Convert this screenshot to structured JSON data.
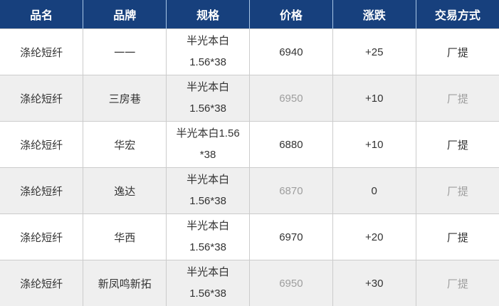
{
  "table": {
    "headers": {
      "name": "品名",
      "brand": "品牌",
      "spec": "规格",
      "price": "价格",
      "change": "涨跌",
      "trade": "交易方式"
    },
    "rows": [
      {
        "name": "涤纶短纤",
        "brand": "一一",
        "spec": "半光本白\n1.56*38",
        "price": "6940",
        "change": "+25",
        "trade": "厂提"
      },
      {
        "name": "涤纶短纤",
        "brand": "三房巷",
        "spec": "半光本白\n1.56*38",
        "price": "6950",
        "change": "+10",
        "trade": "厂提"
      },
      {
        "name": "涤纶短纤",
        "brand": "华宏",
        "spec": "半光本白1.56\n*38",
        "price": "6880",
        "change": "+10",
        "trade": "厂提"
      },
      {
        "name": "涤纶短纤",
        "brand": "逸达",
        "spec": "半光本白\n1.56*38",
        "price": "6870",
        "change": "0",
        "trade": "厂提"
      },
      {
        "name": "涤纶短纤",
        "brand": "华西",
        "spec": "半光本白\n1.56*38",
        "price": "6970",
        "change": "+20",
        "trade": "厂提"
      },
      {
        "name": "涤纶短纤",
        "brand": "新凤鸣新拓",
        "spec": "半光本白\n1.56*38",
        "price": "6950",
        "change": "+30",
        "trade": "厂提"
      }
    ]
  },
  "colors": {
    "header_bg": "#17407d",
    "header_divider": "#a9c6e5",
    "header_text": "#ffffff",
    "row_alt_bg": "#efefef",
    "border": "#cccccc",
    "text": "#333333",
    "muted_text": "#9e9e9e"
  }
}
